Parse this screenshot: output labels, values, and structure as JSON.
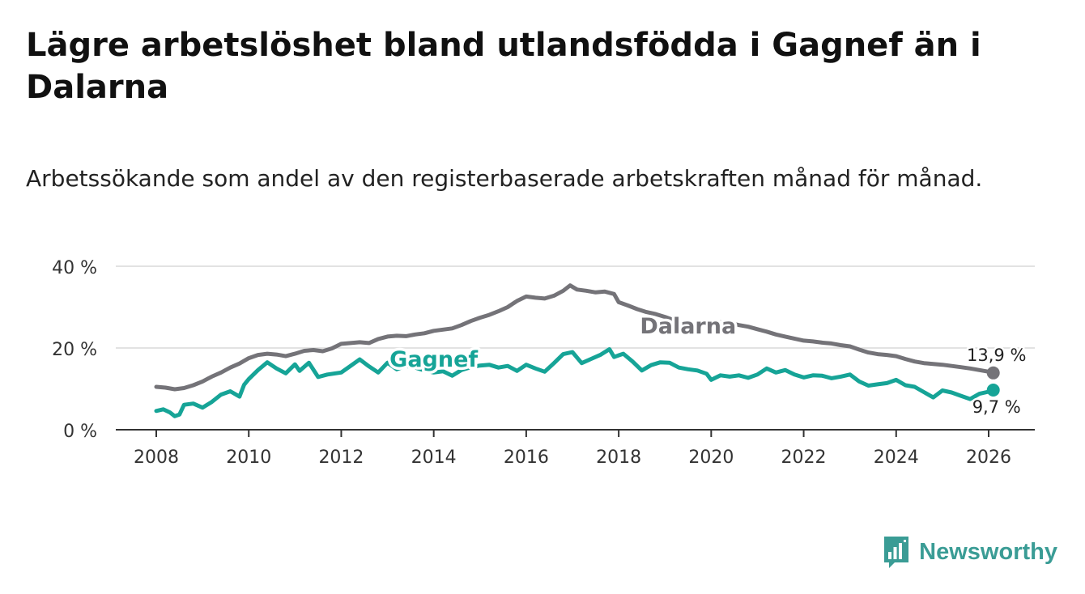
{
  "title": "Lägre arbetslöshet bland utlandsfödda i Gagnef än i Dalarna",
  "subtitle": "Arbetssökande som andel av den registerbaserade arbetskraften månad för månad.",
  "brand": {
    "name": "Newsworthy",
    "icon": "bar-chart-speech-bubble-icon",
    "color": "#3a9c95"
  },
  "chart_data": {
    "type": "line",
    "xlabel": "",
    "ylabel": "",
    "xlim": [
      2007.0,
      2027.0
    ],
    "ylim": [
      0,
      40
    ],
    "grid": true,
    "x_ticks": [
      2008,
      2010,
      2012,
      2014,
      2016,
      2018,
      2020,
      2022,
      2024,
      2026
    ],
    "x_tick_labels": [
      "2008",
      "2010",
      "2012",
      "2014",
      "2016",
      "2018",
      "2020",
      "2022",
      "2024",
      "2026"
    ],
    "y_ticks": [
      0,
      20,
      40
    ],
    "y_tick_labels": [
      "0 %",
      "20 %",
      "40 %"
    ],
    "series": [
      {
        "name": "Dalarna",
        "color": "#747378",
        "label_at": [
          2019.5,
          23.6
        ],
        "end_label": "13,9 %",
        "points": [
          [
            2008.0,
            10.5
          ],
          [
            2008.2,
            10.3
          ],
          [
            2008.4,
            9.9
          ],
          [
            2008.6,
            10.2
          ],
          [
            2008.8,
            10.9
          ],
          [
            2009.0,
            11.8
          ],
          [
            2009.2,
            13.0
          ],
          [
            2009.4,
            14.0
          ],
          [
            2009.6,
            15.2
          ],
          [
            2009.8,
            16.2
          ],
          [
            2010.0,
            17.5
          ],
          [
            2010.2,
            18.3
          ],
          [
            2010.4,
            18.6
          ],
          [
            2010.6,
            18.4
          ],
          [
            2010.8,
            18.0
          ],
          [
            2011.0,
            18.6
          ],
          [
            2011.2,
            19.3
          ],
          [
            2011.4,
            19.5
          ],
          [
            2011.6,
            19.2
          ],
          [
            2011.8,
            19.9
          ],
          [
            2012.0,
            21.0
          ],
          [
            2012.2,
            21.2
          ],
          [
            2012.4,
            21.4
          ],
          [
            2012.6,
            21.2
          ],
          [
            2012.8,
            22.2
          ],
          [
            2013.0,
            22.8
          ],
          [
            2013.2,
            23.0
          ],
          [
            2013.4,
            22.9
          ],
          [
            2013.6,
            23.3
          ],
          [
            2013.8,
            23.6
          ],
          [
            2014.0,
            24.2
          ],
          [
            2014.2,
            24.5
          ],
          [
            2014.4,
            24.8
          ],
          [
            2014.6,
            25.6
          ],
          [
            2014.8,
            26.6
          ],
          [
            2015.0,
            27.4
          ],
          [
            2015.2,
            28.1
          ],
          [
            2015.4,
            29.0
          ],
          [
            2015.6,
            30.0
          ],
          [
            2015.8,
            31.5
          ],
          [
            2016.0,
            32.6
          ],
          [
            2016.2,
            32.3
          ],
          [
            2016.4,
            32.1
          ],
          [
            2016.6,
            32.8
          ],
          [
            2016.8,
            34.0
          ],
          [
            2016.95,
            35.3
          ],
          [
            2017.1,
            34.3
          ],
          [
            2017.3,
            34.0
          ],
          [
            2017.5,
            33.6
          ],
          [
            2017.7,
            33.8
          ],
          [
            2017.9,
            33.2
          ],
          [
            2018.0,
            31.2
          ],
          [
            2018.2,
            30.4
          ],
          [
            2018.4,
            29.5
          ],
          [
            2018.6,
            28.8
          ],
          [
            2018.8,
            28.3
          ],
          [
            2019.0,
            27.6
          ],
          [
            2019.2,
            26.8
          ],
          [
            2019.4,
            26.0
          ],
          [
            2019.6,
            25.5
          ],
          [
            2019.8,
            25.8
          ],
          [
            2020.0,
            26.4
          ],
          [
            2020.2,
            26.3
          ],
          [
            2020.4,
            26.1
          ],
          [
            2020.6,
            25.6
          ],
          [
            2020.8,
            25.2
          ],
          [
            2021.0,
            24.6
          ],
          [
            2021.2,
            24.0
          ],
          [
            2021.4,
            23.3
          ],
          [
            2021.6,
            22.8
          ],
          [
            2021.8,
            22.3
          ],
          [
            2022.0,
            21.8
          ],
          [
            2022.2,
            21.6
          ],
          [
            2022.4,
            21.3
          ],
          [
            2022.6,
            21.1
          ],
          [
            2022.8,
            20.7
          ],
          [
            2023.0,
            20.4
          ],
          [
            2023.2,
            19.6
          ],
          [
            2023.4,
            18.9
          ],
          [
            2023.6,
            18.5
          ],
          [
            2023.8,
            18.3
          ],
          [
            2024.0,
            18.0
          ],
          [
            2024.2,
            17.3
          ],
          [
            2024.4,
            16.7
          ],
          [
            2024.6,
            16.3
          ],
          [
            2024.8,
            16.1
          ],
          [
            2025.0,
            15.9
          ],
          [
            2025.2,
            15.6
          ],
          [
            2025.4,
            15.3
          ],
          [
            2025.6,
            15.0
          ],
          [
            2025.8,
            14.6
          ],
          [
            2026.0,
            14.2
          ],
          [
            2026.1,
            13.9
          ]
        ]
      },
      {
        "name": "Gagnef",
        "color": "#16a497",
        "label_at": [
          2014.0,
          15.4
        ],
        "end_label": "9,7 %",
        "points": [
          [
            2008.0,
            4.6
          ],
          [
            2008.15,
            5.0
          ],
          [
            2008.3,
            4.2
          ],
          [
            2008.4,
            3.3
          ],
          [
            2008.5,
            3.7
          ],
          [
            2008.6,
            6.1
          ],
          [
            2008.8,
            6.4
          ],
          [
            2009.0,
            5.4
          ],
          [
            2009.2,
            6.8
          ],
          [
            2009.4,
            8.6
          ],
          [
            2009.6,
            9.4
          ],
          [
            2009.8,
            8.1
          ],
          [
            2009.9,
            11.0
          ],
          [
            2010.0,
            12.4
          ],
          [
            2010.2,
            14.6
          ],
          [
            2010.4,
            16.5
          ],
          [
            2010.6,
            15.0
          ],
          [
            2010.8,
            13.8
          ],
          [
            2011.0,
            16.0
          ],
          [
            2011.1,
            14.4
          ],
          [
            2011.3,
            16.4
          ],
          [
            2011.5,
            12.9
          ],
          [
            2011.7,
            13.5
          ],
          [
            2012.0,
            14.0
          ],
          [
            2012.2,
            15.6
          ],
          [
            2012.4,
            17.2
          ],
          [
            2012.6,
            15.5
          ],
          [
            2012.8,
            14.0
          ],
          [
            2013.0,
            16.4
          ],
          [
            2013.2,
            14.8
          ],
          [
            2013.4,
            15.6
          ],
          [
            2013.6,
            15.2
          ],
          [
            2013.8,
            14.5
          ],
          [
            2014.0,
            14.0
          ],
          [
            2014.2,
            14.3
          ],
          [
            2014.4,
            13.2
          ],
          [
            2014.6,
            14.6
          ],
          [
            2014.8,
            15.3
          ],
          [
            2015.0,
            15.7
          ],
          [
            2015.2,
            15.9
          ],
          [
            2015.4,
            15.2
          ],
          [
            2015.6,
            15.6
          ],
          [
            2015.8,
            14.4
          ],
          [
            2016.0,
            15.9
          ],
          [
            2016.2,
            15.0
          ],
          [
            2016.4,
            14.2
          ],
          [
            2016.6,
            16.3
          ],
          [
            2016.8,
            18.5
          ],
          [
            2017.0,
            19.0
          ],
          [
            2017.2,
            16.3
          ],
          [
            2017.4,
            17.3
          ],
          [
            2017.6,
            18.3
          ],
          [
            2017.8,
            19.7
          ],
          [
            2017.9,
            17.8
          ],
          [
            2018.1,
            18.6
          ],
          [
            2018.3,
            16.7
          ],
          [
            2018.5,
            14.5
          ],
          [
            2018.7,
            15.8
          ],
          [
            2018.9,
            16.5
          ],
          [
            2019.1,
            16.4
          ],
          [
            2019.3,
            15.2
          ],
          [
            2019.5,
            14.8
          ],
          [
            2019.7,
            14.5
          ],
          [
            2019.9,
            13.7
          ],
          [
            2020.0,
            12.2
          ],
          [
            2020.2,
            13.3
          ],
          [
            2020.4,
            13.0
          ],
          [
            2020.6,
            13.3
          ],
          [
            2020.8,
            12.7
          ],
          [
            2021.0,
            13.5
          ],
          [
            2021.2,
            15.0
          ],
          [
            2021.4,
            14.0
          ],
          [
            2021.6,
            14.6
          ],
          [
            2021.8,
            13.5
          ],
          [
            2022.0,
            12.8
          ],
          [
            2022.2,
            13.3
          ],
          [
            2022.4,
            13.2
          ],
          [
            2022.6,
            12.6
          ],
          [
            2022.8,
            13.0
          ],
          [
            2023.0,
            13.5
          ],
          [
            2023.2,
            11.8
          ],
          [
            2023.4,
            10.8
          ],
          [
            2023.6,
            11.1
          ],
          [
            2023.8,
            11.4
          ],
          [
            2024.0,
            12.2
          ],
          [
            2024.2,
            10.9
          ],
          [
            2024.4,
            10.5
          ],
          [
            2024.6,
            9.2
          ],
          [
            2024.8,
            7.9
          ],
          [
            2025.0,
            9.6
          ],
          [
            2025.2,
            9.1
          ],
          [
            2025.4,
            8.3
          ],
          [
            2025.6,
            7.5
          ],
          [
            2025.8,
            8.8
          ],
          [
            2026.0,
            9.3
          ],
          [
            2026.1,
            9.7
          ]
        ]
      }
    ]
  }
}
